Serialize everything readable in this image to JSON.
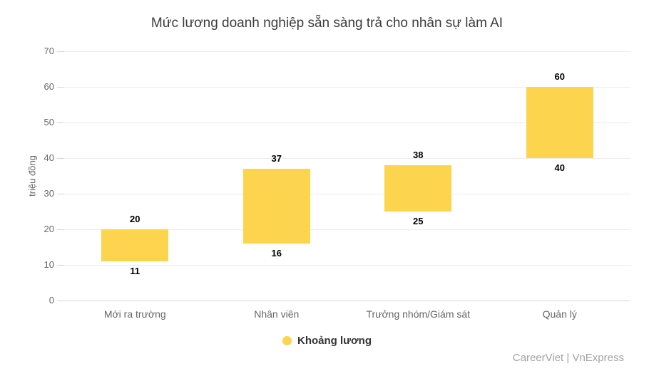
{
  "chart": {
    "title": "Mức lương doanh nghiệp sẵn sàng trả cho nhân sự làm AI",
    "y_axis_title": "triệu đồng",
    "legend_label": "Khoảng lương",
    "credits": "CareerViet | VnExpress"
  },
  "colors": {
    "bar": "#fdd44e",
    "grid": "#ececec",
    "axis_line": "#ccd6eb",
    "title_text": "#3c3c3c",
    "tick_text": "#666666",
    "category_text": "#666666",
    "value_label_text": "#000000",
    "legend_text": "#333333",
    "credits_text": "#a3a3a3"
  },
  "chart_data": {
    "type": "bar",
    "subtype": "columnrange-floating-bars",
    "title": "Mức lương doanh nghiệp sẵn sàng trả cho nhân sự làm AI",
    "xlabel": "",
    "ylabel": "triệu đồng",
    "categories": [
      "Mới ra trường",
      "Nhân viên",
      "Trưởng nhóm/Giám sát",
      "Quản lý"
    ],
    "series": [
      {
        "name": "Khoảng lương",
        "ranges": [
          {
            "low": 11,
            "high": 20
          },
          {
            "low": 16,
            "high": 37
          },
          {
            "low": 25,
            "high": 38
          },
          {
            "low": 40,
            "high": 60
          }
        ]
      }
    ],
    "ylim": [
      0,
      70
    ],
    "yticks": [
      0,
      10,
      20,
      30,
      40,
      50,
      60,
      70
    ],
    "grid": "horizontal only",
    "legend_position": "bottom center",
    "credits": "CareerViet | VnExpress"
  }
}
